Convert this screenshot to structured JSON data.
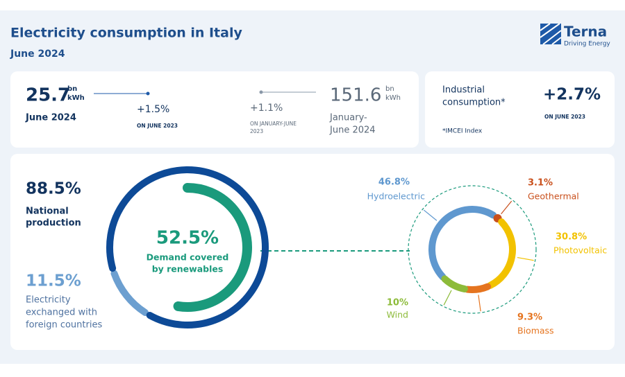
{
  "header": {
    "title": "Electricity consumption in Italy",
    "subtitle": "June 2024",
    "logo": "Terna",
    "tagline": "Driving Energy"
  },
  "monthly": {
    "value": 25.7,
    "unit_top": "bn",
    "unit_bottom": "kWh",
    "label": "June 2024",
    "change": "+1.5%",
    "change_note": "ON JUNE 2023"
  },
  "year_to_date": {
    "value": 151.6,
    "unit_top": "bn",
    "unit_bottom": "kWh",
    "label_lines": [
      "January-",
      "June 2024"
    ],
    "change": "+1.1%",
    "change_note_lines": [
      "ON JANUARY-JUNE",
      "2023"
    ]
  },
  "industrial": {
    "label_lines": [
      "Industrial",
      "consumption*"
    ],
    "change": "+2.7%",
    "change_note": "ON JUNE 2023",
    "footnote": "*IMCEI Index"
  },
  "demand": {
    "national": {
      "value": 88.5,
      "label": "88.5%",
      "text_lines": [
        "National",
        "production"
      ],
      "color": "#0d4a97"
    },
    "foreign": {
      "value": 11.5,
      "label": "11.5%",
      "text_lines": [
        "Electricity",
        "exchanged with",
        "foreign countries"
      ],
      "color": "#6c9fd0"
    },
    "renewables": {
      "value": 52.5,
      "label": "52.5%",
      "text_lines": [
        "Demand covered",
        "by renewables"
      ],
      "color": "#1a9a7c"
    }
  },
  "renewable_mix": [
    {
      "name": "Hydroelectric",
      "value": 46.8,
      "label": "46.8%",
      "color": "#5f98cf"
    },
    {
      "name": "Geothermal",
      "value": 3.1,
      "label": "3.1%",
      "color": "#c9501c"
    },
    {
      "name": "Photovoltaic",
      "value": 30.8,
      "label": "30.8%",
      "color": "#f2c200"
    },
    {
      "name": "Biomass",
      "value": 9.3,
      "label": "9.3%",
      "color": "#e5741f"
    },
    {
      "name": "Wind",
      "value": 10,
      "label": "10%",
      "color": "#8dbb3a"
    }
  ]
}
